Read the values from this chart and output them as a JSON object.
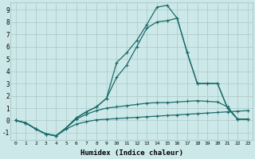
{
  "xlabel": "Humidex (Indice chaleur)",
  "x_ticks": [
    0,
    1,
    2,
    3,
    4,
    5,
    6,
    7,
    8,
    9,
    10,
    11,
    12,
    13,
    14,
    15,
    16,
    17,
    18,
    19,
    20,
    21,
    22,
    23
  ],
  "xlim": [
    -0.5,
    23.5
  ],
  "ylim": [
    -1.6,
    9.6
  ],
  "y_ticks": [
    -1,
    0,
    1,
    2,
    3,
    4,
    5,
    6,
    7,
    8,
    9
  ],
  "bg_color": "#cde8e8",
  "grid_color": "#b0cccc",
  "line_color": "#1a6b6b",
  "line_width": 0.9,
  "marker": "+",
  "marker_size": 3.5,
  "marker_lw": 0.8,
  "lines": [
    {
      "x": [
        0,
        1,
        2,
        3,
        4,
        5,
        6,
        7,
        8,
        9,
        10,
        11,
        12,
        13,
        14,
        15,
        16,
        17,
        18,
        19,
        20,
        21,
        22,
        23
      ],
      "y": [
        0.0,
        -0.2,
        -0.7,
        -1.1,
        -1.25,
        -0.7,
        -0.3,
        -0.1,
        0.05,
        0.1,
        0.15,
        0.2,
        0.25,
        0.3,
        0.35,
        0.4,
        0.45,
        0.5,
        0.55,
        0.6,
        0.65,
        0.7,
        0.75,
        0.8
      ]
    },
    {
      "x": [
        0,
        1,
        2,
        3,
        4,
        5,
        6,
        7,
        8,
        9,
        10,
        11,
        12,
        13,
        14,
        15,
        16,
        17,
        18,
        19,
        20,
        21,
        22,
        23
      ],
      "y": [
        0.0,
        -0.2,
        -0.7,
        -1.1,
        -1.25,
        -0.6,
        0.1,
        0.5,
        0.8,
        1.0,
        1.1,
        1.2,
        1.3,
        1.4,
        1.45,
        1.45,
        1.5,
        1.55,
        1.6,
        1.55,
        1.5,
        1.1,
        0.1,
        0.1
      ]
    },
    {
      "x": [
        0,
        1,
        2,
        3,
        4,
        5,
        6,
        7,
        8,
        9,
        10,
        11,
        12,
        13,
        14,
        15,
        16,
        17,
        18,
        19,
        20,
        21,
        22,
        23
      ],
      "y": [
        0.0,
        -0.2,
        -0.7,
        -1.1,
        -1.25,
        -0.6,
        0.2,
        0.7,
        1.1,
        1.8,
        3.5,
        4.5,
        6.0,
        7.5,
        8.0,
        8.1,
        8.3,
        5.5,
        3.0,
        3.0,
        3.0,
        1.0,
        0.1,
        0.1
      ]
    },
    {
      "x": [
        0,
        1,
        2,
        3,
        4,
        5,
        6,
        7,
        8,
        9,
        10,
        11,
        12,
        13,
        14,
        15,
        16,
        17,
        18,
        19,
        20,
        21,
        22,
        23
      ],
      "y": [
        0.0,
        -0.2,
        -0.7,
        -1.1,
        -1.25,
        -0.6,
        0.2,
        0.7,
        1.1,
        1.8,
        4.7,
        5.5,
        6.5,
        7.8,
        9.2,
        9.35,
        8.3,
        5.5,
        3.0,
        3.0,
        3.0,
        1.0,
        0.1,
        0.1
      ]
    }
  ]
}
